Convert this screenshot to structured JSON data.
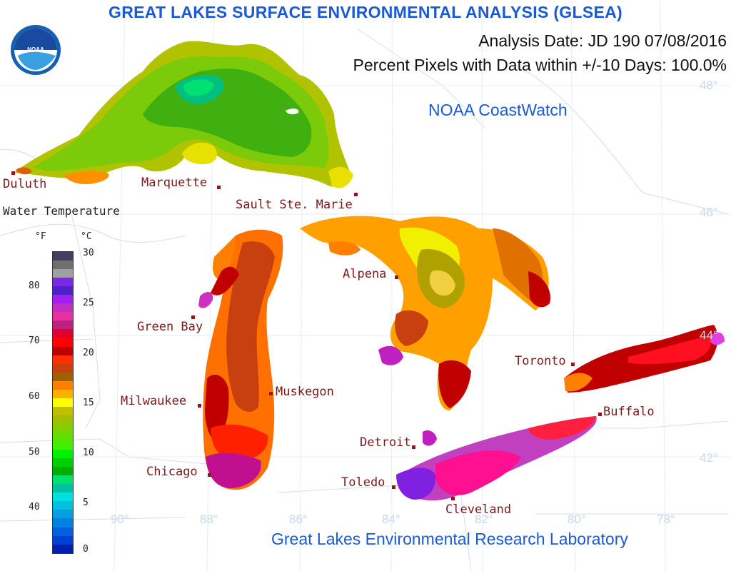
{
  "header": {
    "title": "GREAT LAKES SURFACE ENVIRONMENTAL ANALYSIS (GLSEA)",
    "analysis_date": "Analysis Date:  JD 190 07/08/2016",
    "percent_pixels": "Percent Pixels with Data within +/-10 Days: 100.0%",
    "coastwatch": "NOAA CoastWatch",
    "footer": "Great Lakes Environmental Research Laboratory",
    "logo_text": "NOAA"
  },
  "cities": [
    {
      "name": "Duluth"
    },
    {
      "name": "Marquette"
    },
    {
      "name": "Sault Ste. Marie"
    },
    {
      "name": "Alpena"
    },
    {
      "name": "Green Bay"
    },
    {
      "name": "Toronto"
    },
    {
      "name": "Muskegon"
    },
    {
      "name": "Milwaukee"
    },
    {
      "name": "Buffalo"
    },
    {
      "name": "Detroit"
    },
    {
      "name": "Chicago"
    },
    {
      "name": "Toledo"
    },
    {
      "name": "Cleveland"
    }
  ],
  "graticule": {
    "lat_labels": [
      "48°",
      "46°",
      "44°",
      "42°"
    ],
    "lon_labels": [
      "90°",
      "88°",
      "86°",
      "84°",
      "82°",
      "80°",
      "78°"
    ]
  },
  "legend": {
    "title": "Water Temperature",
    "unit_f": "°F",
    "unit_c": "°C",
    "f_ticks": [
      "80",
      "70",
      "60",
      "50",
      "40"
    ],
    "c_ticks": [
      "30",
      "25",
      "20",
      "15",
      "10",
      "5",
      "0"
    ],
    "colors": [
      "#404060",
      "#707070",
      "#a0a0a0",
      "#7a28e8",
      "#5020c8",
      "#a020f0",
      "#c030c0",
      "#e830a0",
      "#c02080",
      "#e00030",
      "#ff0000",
      "#c00000",
      "#ff3000",
      "#c84010",
      "#a06000",
      "#ff8000",
      "#ffb000",
      "#ffff00",
      "#c0c000",
      "#a0c000",
      "#80d000",
      "#60e000",
      "#40f000",
      "#00f000",
      "#00d000",
      "#00b000",
      "#00e070",
      "#00c0a0",
      "#00e0e0",
      "#00c0e0",
      "#00a0e0",
      "#0080e0",
      "#0060e0",
      "#0040d0",
      "#0020b0"
    ]
  }
}
